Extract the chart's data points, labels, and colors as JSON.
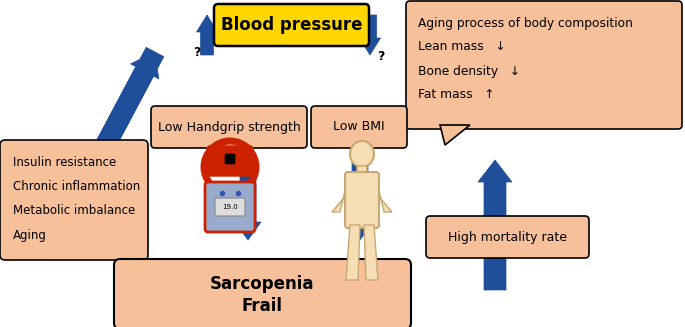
{
  "bg_color": "#ffffff",
  "salmon_fill": "#F5C09A",
  "salmon_edge": "#000000",
  "yellow_fill": "#FFD700",
  "yellow_edge": "#000000",
  "arrow_color": "#1F4E9B",
  "body_color": "#F5DEB3",
  "body_edge": "#C8A870",
  "scale_red": "#CC2200",
  "scale_blue": "#99AACC",
  "blood_pressure_text": "Blood pressure",
  "left_box_lines": [
    "Insulin resistance",
    "Chronic inflammation",
    "Metabolic imbalance",
    "Aging"
  ],
  "handgrip_text": "Low Handgrip strength",
  "bmi_text": "Low BMI",
  "sarcopenia_lines": [
    "Sarcopenia",
    "Frail"
  ],
  "mortality_text": "High mortality rate",
  "aging_lines": [
    "Aging process of body composition",
    "Lean mass   ↓",
    "Bone density   ↓",
    "Fat mass   ↑"
  ]
}
